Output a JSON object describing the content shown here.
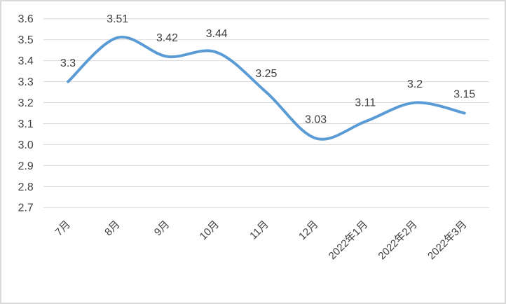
{
  "frame": {
    "border_color": "#d9d9d9",
    "background_color": "#ffffff"
  },
  "chart_data": {
    "type": "line",
    "title": "",
    "categories": [
      "7月",
      "8月",
      "9月",
      "10月",
      "11月",
      "12月",
      "2022年1月",
      "2022年2月",
      "2022年3月"
    ],
    "values": [
      3.3,
      3.51,
      3.42,
      3.44,
      3.25,
      3.03,
      3.11,
      3.2,
      3.15
    ],
    "data_labels": [
      "3.3",
      "3.51",
      "3.42",
      "3.44",
      "3.25",
      "3.03",
      "3.11",
      "3.2",
      "3.15"
    ],
    "yticks": [
      "3.6",
      "3.5",
      "3.4",
      "3.3",
      "3.2",
      "3.1",
      "3.0",
      "2.9",
      "2.8",
      "2.7"
    ],
    "ytick_step": 0.1,
    "ylim": [
      2.7,
      3.6
    ],
    "xlabel": "",
    "ylabel": "",
    "grid": true,
    "legend": "none",
    "smooth": true,
    "line_color": "#5b9bd5",
    "gridline_color": "#d9d9d9",
    "text_color": "#404040"
  }
}
